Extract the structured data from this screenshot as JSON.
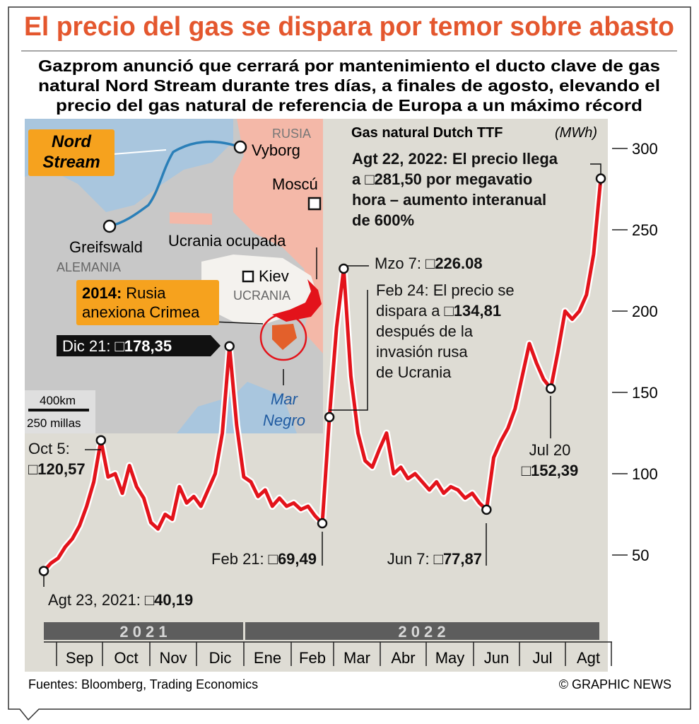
{
  "title": "El precio del gas se dispara por temor sobre abasto",
  "subtitle": [
    "Gazprom anunció que cerrará por mantenimiento el ducto clave de gas",
    "natural Nord Stream durante tres días, a finales de agosto, elevando el",
    "precio del gas natural de referencia de Europa a un máximo récord"
  ],
  "chart_data": {
    "type": "line",
    "title": "Gas natural Dutch TTF",
    "unit": "(MWh)",
    "years": [
      "2 0 2 1",
      "2 0 2 2"
    ],
    "months": [
      "Sep",
      "Oct",
      "Nov",
      "Dic",
      "Ene",
      "Feb",
      "Mar",
      "Abr",
      "May",
      "Jun",
      "Jul",
      "Agt"
    ],
    "series": [
      {
        "color": "#e3131b",
        "values": [
          40.19,
          45,
          48,
          55,
          60,
          68,
          80,
          95,
          120.57,
          98,
          100,
          88,
          105,
          92,
          85,
          70,
          66,
          75,
          72,
          92,
          82,
          86,
          80,
          90,
          100,
          125,
          178.35,
          130,
          98,
          95,
          86,
          90,
          80,
          85,
          80,
          82,
          78,
          80,
          74,
          69.49,
          134.81,
          190,
          226.08,
          160,
          125,
          108,
          104,
          115,
          125,
          100,
          104,
          97,
          100,
          95,
          90,
          95,
          88,
          92,
          90,
          85,
          88,
          82,
          77.87,
          110,
          120,
          128,
          140,
          160,
          180,
          168,
          158,
          152.39,
          175,
          200,
          195,
          200,
          210,
          235,
          281.5
        ]
      }
    ],
    "ylim": [
      20,
      300
    ],
    "yticks": [
      50,
      100,
      150,
      200,
      250,
      300
    ],
    "annotations": [
      {
        "lead": "Agt 23, 2021:",
        "value_label": "□40,19",
        "value": 40.19
      },
      {
        "lines_before": [
          "Oct 5:"
        ],
        "value_label": "□120,57",
        "value": 120.57
      },
      {
        "lead": "Dic 21:",
        "value_label": "□178,35",
        "value": 178.35
      },
      {
        "lead": "Feb 21:",
        "value_label": "□69,49",
        "value": 69.49
      },
      {
        "lines_before": [
          "Feb 24: El precio se"
        ],
        "lead": "dispara a",
        "value_label": "□134,81",
        "lines_after": [
          "después de la",
          "invasión rusa",
          "de Ucrania"
        ],
        "value": 134.81
      },
      {
        "lead": "Mzo 7:",
        "value_label": "□226.08",
        "value": 226.08
      },
      {
        "lead": "Jun 7:",
        "value_label": "□77,87",
        "value": 77.87
      },
      {
        "lines_before": [
          "Jul 20"
        ],
        "value_label": "□152,39",
        "value": 152.39
      },
      {
        "lines_before": [
          "Agt 22, 2022: El precio llega"
        ],
        "lead": "a",
        "value_label": "□281,50",
        "trail": "por megavatio",
        "lines_after": [
          "hora – aumento interanual",
          "de 600%"
        ],
        "value": 281.5,
        "bold": true
      }
    ]
  },
  "map": {
    "russia": "RUSIA",
    "vyborg": "Vyborg",
    "moscow": "Moscú",
    "greifswald": "Greifswald",
    "occupied": "Ucrania ocupada",
    "germany": "ALEMANIA",
    "kiev": "Kiev",
    "ukraine": "UCRANIA",
    "nord_stream": [
      "Nord",
      "Stream"
    ],
    "crimea_year": "2014:",
    "crimea_text": [
      "Rusia",
      "anexiona Crimea"
    ],
    "sea": [
      "Mar",
      "Negro"
    ],
    "scale_km": "400km",
    "scale_mi": "250 millas"
  },
  "footer": {
    "source": "Fuentes: Bloomberg, Trading Economics",
    "credit": "© GRAPHIC NEWS"
  }
}
